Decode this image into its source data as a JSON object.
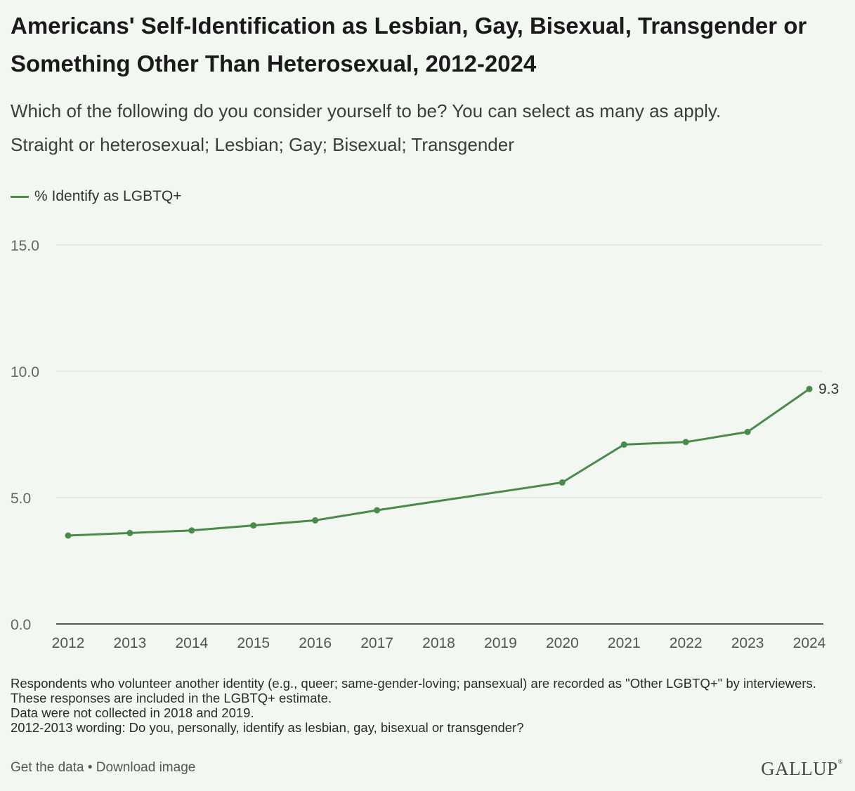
{
  "chart_data": {
    "type": "line",
    "title": "Americans' Self-Identification as Lesbian, Gay, Bisexual, Transgender or Something Other Than Heterosexual, 2012-2024",
    "subtitle_lines": [
      "Which of the following do you consider yourself to be? You can select as many as apply.",
      "Straight or heterosexual; Lesbian; Gay; Bisexual; Transgender"
    ],
    "x_ticks": [
      "2012",
      "2013",
      "2014",
      "2015",
      "2016",
      "2017",
      "2018",
      "2019",
      "2020",
      "2021",
      "2022",
      "2023",
      "2024"
    ],
    "y_ticks": [
      "0.0",
      "5.0",
      "10.0",
      "15.0"
    ],
    "ylim": [
      0,
      15
    ],
    "xlim": [
      2012,
      2024
    ],
    "grid": true,
    "legend_position": "top-left",
    "series": [
      {
        "name": "% Identify as LGBTQ+",
        "color": "#4a8a4a",
        "x": [
          2012,
          2013,
          2014,
          2015,
          2016,
          2017,
          2020,
          2021,
          2022,
          2023,
          2024
        ],
        "values": [
          3.5,
          3.6,
          3.7,
          3.9,
          4.1,
          4.5,
          5.6,
          7.1,
          7.2,
          7.6,
          9.3
        ],
        "end_label": "9.3"
      }
    ]
  },
  "notes": [
    "Respondents who volunteer another identity (e.g., queer; same-gender-loving; pansexual) are recorded as \"Other LGBTQ+\" by interviewers. These responses are included in the LGBTQ+ estimate.",
    "Data were not collected in 2018 and 2019.",
    "2012-2013 wording: Do you, personally, identify as lesbian, gay, bisexual or transgender?"
  ],
  "footer": {
    "get_data": "Get the data",
    "separator": "•",
    "download": "Download image",
    "logo": "GALLUP",
    "logo_mark": "®"
  }
}
